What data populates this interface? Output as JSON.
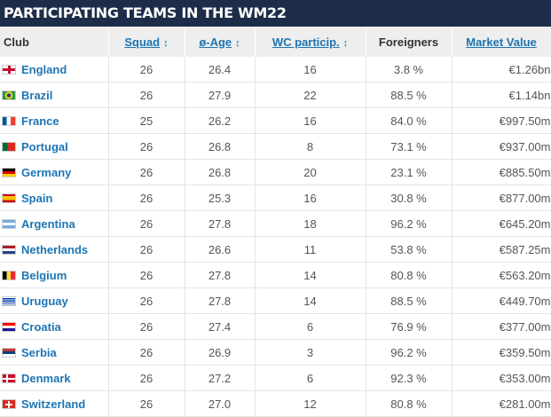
{
  "title": "PARTICIPATING TEAMS IN THE WM22",
  "columns": {
    "club": "Club",
    "squad": "Squad",
    "age": "ø-Age",
    "wc": "WC particip.",
    "foreigners": "Foreigners",
    "market_value": "Market Value",
    "sort_arrow": "↕"
  },
  "rows": [
    {
      "flag": "england-flag-icon",
      "club": "England",
      "squad": "26",
      "age": "26.4",
      "wc": "16",
      "foreigners": "3.8 %",
      "market_value": "€1.26bn"
    },
    {
      "flag": "brazil-flag-icon",
      "club": "Brazil",
      "squad": "26",
      "age": "27.9",
      "wc": "22",
      "foreigners": "88.5 %",
      "market_value": "€1.14bn"
    },
    {
      "flag": "france-flag-icon",
      "club": "France",
      "squad": "25",
      "age": "26.2",
      "wc": "16",
      "foreigners": "84.0 %",
      "market_value": "€997.50m"
    },
    {
      "flag": "portugal-flag-icon",
      "club": "Portugal",
      "squad": "26",
      "age": "26.8",
      "wc": "8",
      "foreigners": "73.1 %",
      "market_value": "€937.00m"
    },
    {
      "flag": "germany-flag-icon",
      "club": "Germany",
      "squad": "26",
      "age": "26.8",
      "wc": "20",
      "foreigners": "23.1 %",
      "market_value": "€885.50m"
    },
    {
      "flag": "spain-flag-icon",
      "club": "Spain",
      "squad": "26",
      "age": "25.3",
      "wc": "16",
      "foreigners": "30.8 %",
      "market_value": "€877.00m"
    },
    {
      "flag": "argentina-flag-icon",
      "club": "Argentina",
      "squad": "26",
      "age": "27.8",
      "wc": "18",
      "foreigners": "96.2 %",
      "market_value": "€645.20m"
    },
    {
      "flag": "netherlands-flag-icon",
      "club": "Netherlands",
      "squad": "26",
      "age": "26.6",
      "wc": "11",
      "foreigners": "53.8 %",
      "market_value": "€587.25m"
    },
    {
      "flag": "belgium-flag-icon",
      "club": "Belgium",
      "squad": "26",
      "age": "27.8",
      "wc": "14",
      "foreigners": "80.8 %",
      "market_value": "€563.20m"
    },
    {
      "flag": "uruguay-flag-icon",
      "club": "Uruguay",
      "squad": "26",
      "age": "27.8",
      "wc": "14",
      "foreigners": "88.5 %",
      "market_value": "€449.70m"
    },
    {
      "flag": "croatia-flag-icon",
      "club": "Croatia",
      "squad": "26",
      "age": "27.4",
      "wc": "6",
      "foreigners": "76.9 %",
      "market_value": "€377.00m"
    },
    {
      "flag": "serbia-flag-icon",
      "club": "Serbia",
      "squad": "26",
      "age": "26.9",
      "wc": "3",
      "foreigners": "96.2 %",
      "market_value": "€359.50m"
    },
    {
      "flag": "denmark-flag-icon",
      "club": "Denmark",
      "squad": "26",
      "age": "27.2",
      "wc": "6",
      "foreigners": "92.3 %",
      "market_value": "€353.00m"
    },
    {
      "flag": "switzerland-flag-icon",
      "club": "Switzerland",
      "squad": "26",
      "age": "27.0",
      "wc": "12",
      "foreigners": "80.8 %",
      "market_value": "€281.00m"
    }
  ],
  "colors": {
    "header_bar": "#1d2d49",
    "link": "#1d75b3",
    "header_row": "#eeeeee"
  }
}
